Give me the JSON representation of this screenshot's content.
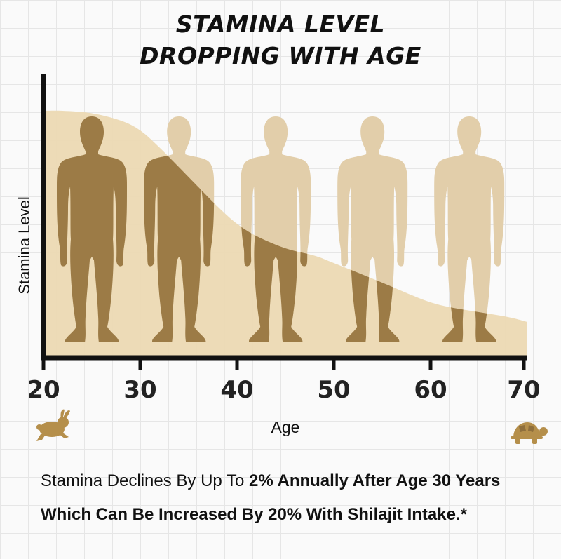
{
  "title_line1": "STAMINA LEVEL",
  "title_line2": "DROPPING WITH AGE",
  "chart_data": {
    "type": "area",
    "title": "STAMINA LEVEL DROPPING WITH AGE",
    "xlabel": "Age",
    "ylabel": "Stamina Level",
    "x_ticks": [
      20,
      30,
      40,
      50,
      60,
      70
    ],
    "xlim": [
      20,
      70
    ],
    "ylim": [
      0,
      1
    ],
    "grid": true,
    "series": [
      {
        "x": [
          20,
          22,
          25,
          28,
          30,
          32,
          35,
          38,
          40,
          42,
          45,
          48,
          50,
          55,
          58,
          60,
          62,
          65,
          68,
          70
        ],
        "values": [
          1.0,
          1.0,
          0.99,
          0.96,
          0.92,
          0.85,
          0.73,
          0.61,
          0.54,
          0.49,
          0.44,
          0.41,
          0.38,
          0.3,
          0.25,
          0.22,
          0.2,
          0.18,
          0.16,
          0.14
        ]
      }
    ],
    "figures": {
      "count": 5,
      "ages": [
        25,
        34,
        44,
        54,
        64
      ],
      "markers": [
        "rabbit-icon",
        "tortoise-icon"
      ]
    }
  },
  "caption": {
    "normal": "Stamina Declines By Up To ",
    "bold": "2% Annually After Age 30 Years Which Can Be Increased By 20% With Shilajit Intake.*"
  },
  "colors": {
    "area": "#ecd9b3",
    "figure_light": "#e2ceaa",
    "figure_dark": "#9c7b46",
    "axis": "#111111",
    "icon": "#b58f4b"
  }
}
